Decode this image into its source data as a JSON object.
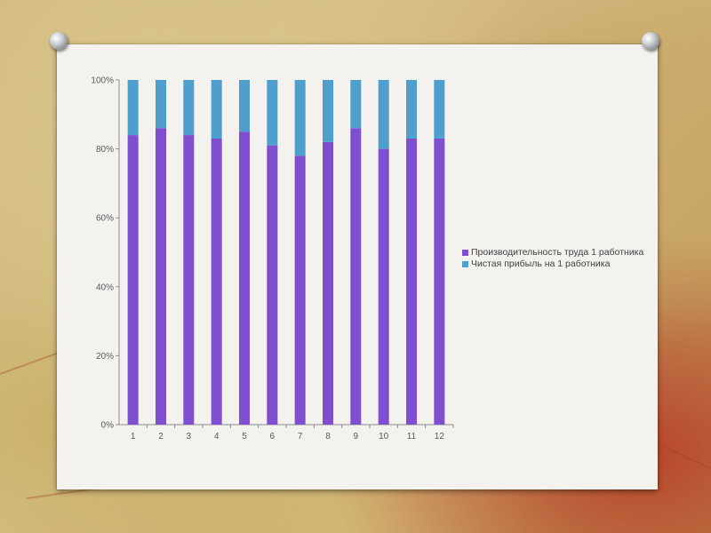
{
  "colors": {
    "series1": "#7f4fcf",
    "series2": "#4f9fcd",
    "axis": "#8c8c8c"
  },
  "icons": [
    "pushpin-icon-left",
    "pushpin-icon-right"
  ],
  "chart_data": {
    "type": "bar",
    "stacked": "percent",
    "categories": [
      "1",
      "2",
      "3",
      "4",
      "5",
      "6",
      "7",
      "8",
      "9",
      "10",
      "11",
      "12"
    ],
    "series": [
      {
        "name": "Производительность труда 1 работника",
        "values": [
          84,
          86,
          84,
          83,
          85,
          81,
          78,
          82,
          86,
          80,
          83,
          83
        ]
      },
      {
        "name": "Чистая прибыль на 1 работника",
        "values": [
          16,
          14,
          16,
          17,
          15,
          19,
          22,
          18,
          14,
          20,
          17,
          17
        ]
      }
    ],
    "y_ticks": [
      "0%",
      "20%",
      "40%",
      "60%",
      "80%",
      "100%"
    ],
    "ylim": [
      0,
      100
    ],
    "grid": false,
    "legend_position": "right"
  }
}
